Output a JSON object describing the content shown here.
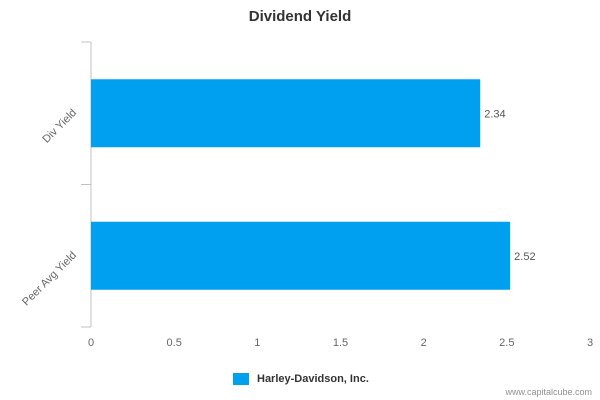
{
  "chart_data": {
    "type": "bar",
    "orientation": "horizontal",
    "title": "Dividend Yield",
    "categories": [
      "Div Yield",
      "Peer Avg Yield"
    ],
    "series": [
      {
        "name": "Harley-Davidson, Inc.",
        "values": [
          2.34,
          2.52
        ]
      }
    ],
    "data_labels": [
      "2.34",
      "2.52"
    ],
    "xlim": [
      0,
      3
    ],
    "x_ticks": [
      0,
      0.5,
      1,
      1.5,
      2,
      2.5,
      3
    ],
    "x_tick_labels": [
      "0",
      "0.5",
      "1",
      "1.5",
      "2",
      "2.5",
      "3"
    ],
    "grid": false,
    "legend_position": "bottom-center",
    "bar_color": "#00a0f0"
  },
  "footer": {
    "credit": "www.capitalcube.com"
  }
}
